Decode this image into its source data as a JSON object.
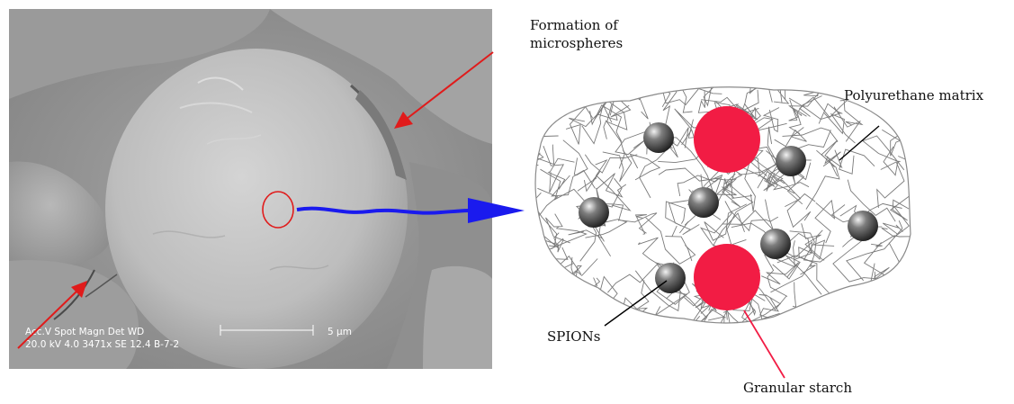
{
  "labels": {
    "formation_line1": "Formation of",
    "formation_line2": "microspheres",
    "polyurethane": "Polyurethane matrix",
    "spions": "SPIONs",
    "granular_starch": "Granular starch"
  },
  "sem_overlay": {
    "header": "Acc.V  Spot Magn     Det  WD",
    "values": "20.0 kV 4.0   3471x    SE   12.4  B-7-2",
    "scale_bar": "5 µm"
  },
  "colors": {
    "pointer_arrow": "#e01b1b",
    "flow_arrow": "#1a1aee",
    "starch": "#f21c44",
    "mesh": "#7a7a7a",
    "spion": "#2f2f2f"
  }
}
